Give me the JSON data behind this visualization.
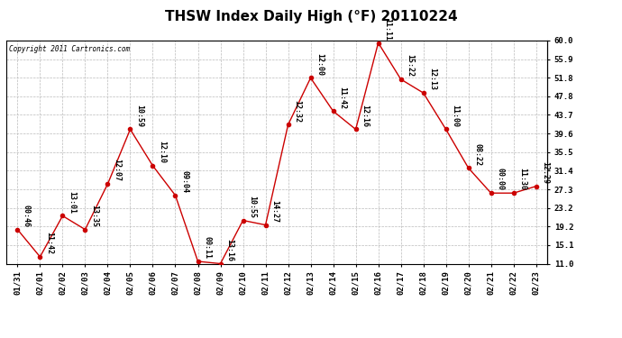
{
  "title": "THSW Index Daily High (°F) 20110224",
  "copyright": "Copyright 2011 Cartronics.com",
  "x_labels": [
    "01/31",
    "02/01",
    "02/02",
    "02/03",
    "02/04",
    "02/05",
    "02/06",
    "02/07",
    "02/08",
    "02/09",
    "02/10",
    "02/11",
    "02/12",
    "02/13",
    "02/14",
    "02/15",
    "02/16",
    "02/17",
    "02/18",
    "02/19",
    "02/20",
    "02/21",
    "02/22",
    "02/23"
  ],
  "y_values": [
    18.5,
    12.5,
    21.5,
    18.5,
    28.5,
    40.5,
    32.5,
    26.0,
    11.5,
    11.0,
    20.5,
    19.5,
    41.5,
    51.8,
    44.5,
    40.5,
    59.5,
    51.5,
    48.5,
    40.5,
    32.0,
    26.5,
    26.5,
    28.0
  ],
  "point_labels": [
    "00:46",
    "11:42",
    "13:01",
    "13:35",
    "12:07",
    "10:59",
    "12:10",
    "09:04",
    "00:11",
    "13:16",
    "10:55",
    "14:27",
    "12:32",
    "12:00",
    "11:42",
    "12:16",
    "11:11",
    "15:22",
    "12:13",
    "11:00",
    "08:22",
    "00:00",
    "11:30",
    "12:29"
  ],
  "ylim": [
    11.0,
    60.0
  ],
  "yticks": [
    11.0,
    15.1,
    19.2,
    23.2,
    27.3,
    31.4,
    35.5,
    39.6,
    43.7,
    47.8,
    51.8,
    55.9,
    60.0
  ],
  "line_color": "#cc0000",
  "marker_color": "#cc0000",
  "bg_color": "#ffffff",
  "grid_color": "#bbbbbb",
  "title_fontsize": 11,
  "label_fontsize": 6.5,
  "point_label_fontsize": 6.0
}
